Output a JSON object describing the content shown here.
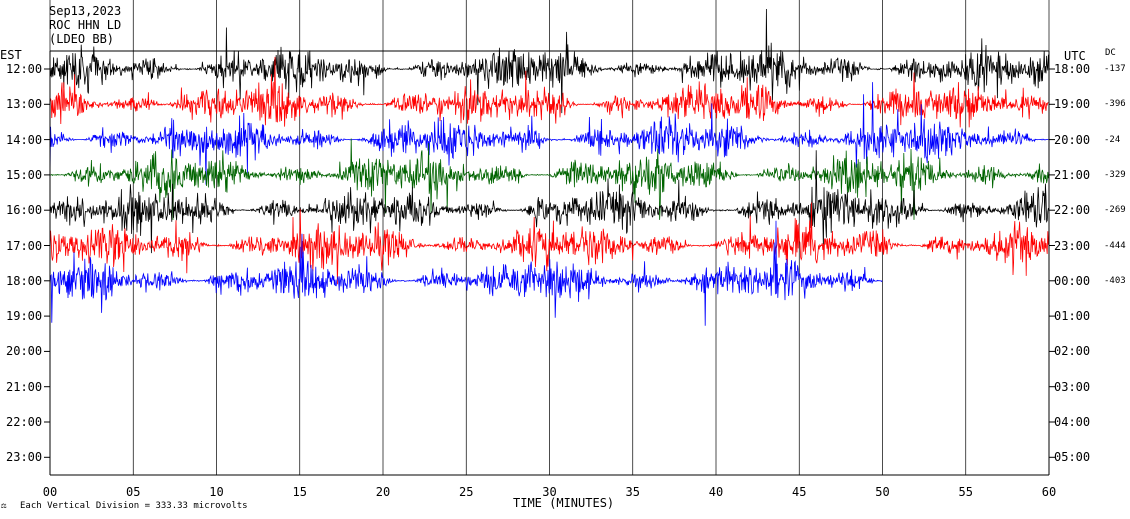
{
  "header": {
    "date": "Sep13,2023",
    "station": "ROC HHN LD",
    "network_note": "(LDEO BB)"
  },
  "chart_data": {
    "type": "line",
    "title": "",
    "xlabel": "TIME (MINUTES)",
    "xlim": [
      0,
      60
    ],
    "x_ticks": [
      "00",
      "05",
      "10",
      "15",
      "20",
      "25",
      "30",
      "35",
      "40",
      "45",
      "50",
      "55",
      "60"
    ],
    "left_axis_title": "EST",
    "right_axis_title": "UTC",
    "dc_title": "DC",
    "rows": [
      {
        "est": "12:00",
        "utc": "18:00",
        "dc": "-137",
        "color": "#000000",
        "end_min": 60
      },
      {
        "est": "13:00",
        "utc": "19:00",
        "dc": "-396",
        "color": "#ff0000",
        "end_min": 60
      },
      {
        "est": "14:00",
        "utc": "20:00",
        "dc": "-24",
        "color": "#0000ff",
        "end_min": 60
      },
      {
        "est": "15:00",
        "utc": "21:00",
        "dc": "-329",
        "color": "#006400",
        "end_min": 60
      },
      {
        "est": "16:00",
        "utc": "22:00",
        "dc": "-269",
        "color": "#000000",
        "end_min": 60
      },
      {
        "est": "17:00",
        "utc": "23:00",
        "dc": "-444",
        "color": "#ff0000",
        "end_min": 60
      },
      {
        "est": "18:00",
        "utc": "00:00",
        "dc": "-403",
        "color": "#0000ff",
        "end_min": 50
      },
      {
        "est": "19:00",
        "utc": "01:00",
        "dc": "",
        "color": "",
        "end_min": 0
      },
      {
        "est": "20:00",
        "utc": "02:00",
        "dc": "",
        "color": "",
        "end_min": 0
      },
      {
        "est": "21:00",
        "utc": "03:00",
        "dc": "",
        "color": "",
        "end_min": 0
      },
      {
        "est": "22:00",
        "utc": "04:00",
        "dc": "",
        "color": "",
        "end_min": 0
      },
      {
        "est": "23:00",
        "utc": "05:00",
        "dc": "",
        "color": "",
        "end_min": 0
      }
    ],
    "scale_note": "Each Vertical Division =  333.33 microvolts",
    "grid": true
  }
}
